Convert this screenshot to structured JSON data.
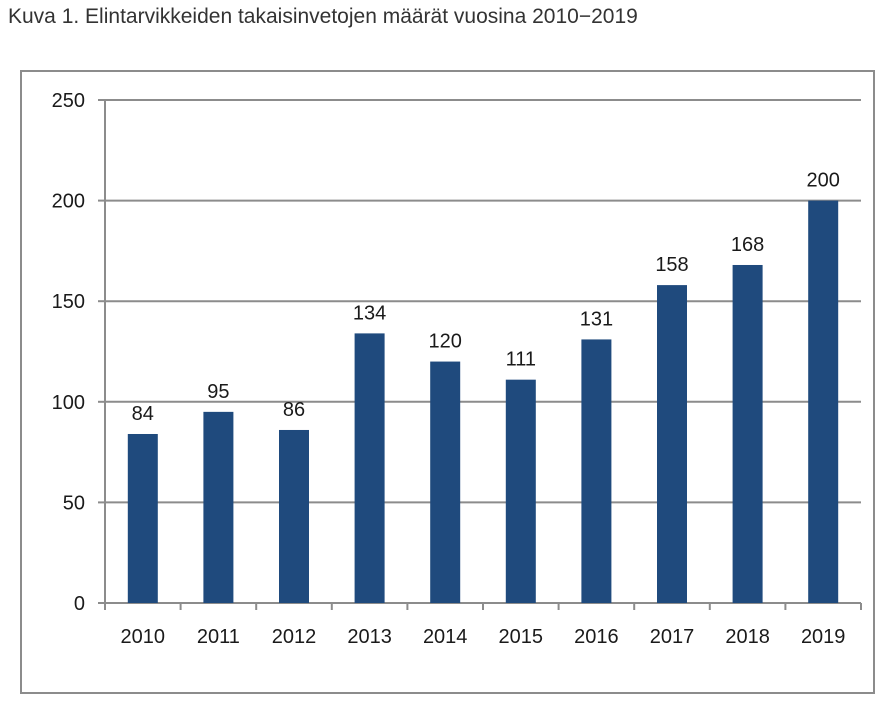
{
  "caption": "Kuva 1. Elintarvikkeiden takaisinvetojen määrät vuosina 2010−2019",
  "colors": {
    "bar": "#1f4a7d",
    "grid": "#8c8c8c",
    "frame": "#8c8c8c"
  },
  "chart_data": {
    "type": "bar",
    "title": "",
    "xlabel": "",
    "ylabel": "",
    "categories": [
      "2010",
      "2011",
      "2012",
      "2013",
      "2014",
      "2015",
      "2016",
      "2017",
      "2018",
      "2019"
    ],
    "values": [
      84,
      95,
      86,
      134,
      120,
      111,
      131,
      158,
      168,
      200
    ],
    "data_labels": [
      "84",
      "95",
      "86",
      "134",
      "120",
      "111",
      "131",
      "158",
      "168",
      "200"
    ],
    "ylim": [
      0,
      250
    ],
    "yticks": [
      0,
      50,
      100,
      150,
      200,
      250
    ],
    "ytick_labels": [
      "0",
      "50",
      "100",
      "150",
      "200",
      "250"
    ],
    "grid": true,
    "legend": "none"
  }
}
